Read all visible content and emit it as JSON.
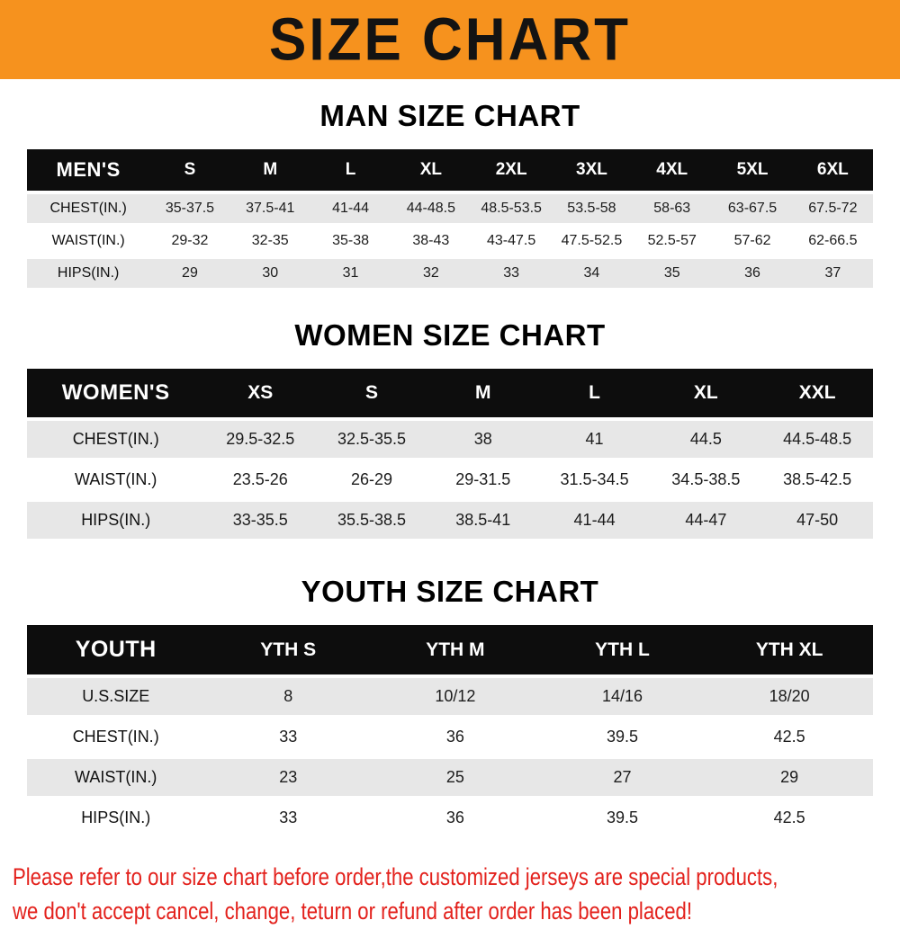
{
  "banner": {
    "title": "SIZE CHART"
  },
  "colors": {
    "banner_bg": "#F6921E",
    "header_row_bg": "#0d0d0d",
    "row_alt_bg": "#e7e7e7",
    "footer_text": "#e3211c"
  },
  "chart_data": [
    {
      "type": "table",
      "title": "MAN SIZE CHART",
      "columns": [
        "MEN'S",
        "S",
        "M",
        "L",
        "XL",
        "2XL",
        "3XL",
        "4XL",
        "5XL",
        "6XL"
      ],
      "rows": [
        [
          "CHEST(IN.)",
          "35-37.5",
          "37.5-41",
          "41-44",
          "44-48.5",
          "48.5-53.5",
          "53.5-58",
          "58-63",
          "63-67.5",
          "67.5-72"
        ],
        [
          "WAIST(IN.)",
          "29-32",
          "32-35",
          "35-38",
          "38-43",
          "43-47.5",
          "47.5-52.5",
          "52.5-57",
          "57-62",
          "62-66.5"
        ],
        [
          "HIPS(IN.)",
          "29",
          "30",
          "31",
          "32",
          "33",
          "34",
          "35",
          "36",
          "37"
        ]
      ]
    },
    {
      "type": "table",
      "title": "WOMEN SIZE CHART",
      "columns": [
        "WOMEN'S",
        "XS",
        "S",
        "M",
        "L",
        "XL",
        "XXL"
      ],
      "rows": [
        [
          "CHEST(IN.)",
          "29.5-32.5",
          "32.5-35.5",
          "38",
          "41",
          "44.5",
          "44.5-48.5"
        ],
        [
          "WAIST(IN.)",
          "23.5-26",
          "26-29",
          "29-31.5",
          "31.5-34.5",
          "34.5-38.5",
          "38.5-42.5"
        ],
        [
          "HIPS(IN.)",
          "33-35.5",
          "35.5-38.5",
          "38.5-41",
          "41-44",
          "44-47",
          "47-50"
        ]
      ]
    },
    {
      "type": "table",
      "title": "YOUTH SIZE CHART",
      "columns": [
        "YOUTH",
        "YTH S",
        "YTH M",
        "YTH L",
        "YTH XL"
      ],
      "rows": [
        [
          "U.S.SIZE",
          "8",
          "10/12",
          "14/16",
          "18/20"
        ],
        [
          "CHEST(IN.)",
          "33",
          "36",
          "39.5",
          "42.5"
        ],
        [
          "WAIST(IN.)",
          "23",
          "25",
          "27",
          "29"
        ],
        [
          "HIPS(IN.)",
          "33",
          "36",
          "39.5",
          "42.5"
        ]
      ]
    }
  ],
  "footer": {
    "line1": "Please refer to our size chart before order,the customized jerseys are special products,",
    "line2": "we don't accept cancel, change, teturn or refund after order has been placed!"
  }
}
